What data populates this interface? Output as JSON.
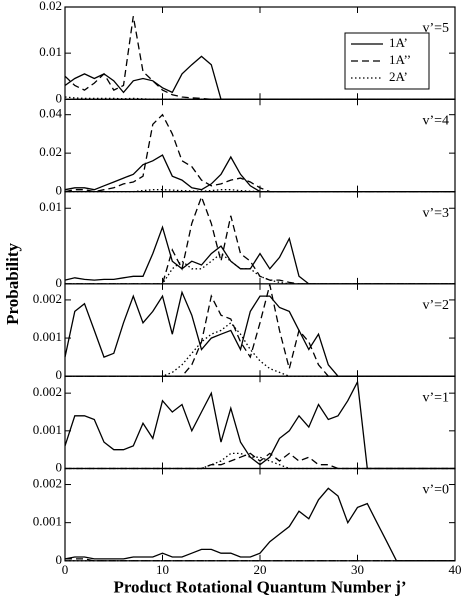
{
  "chart_data": [
    {
      "type": "line",
      "label": "v’=5",
      "ylim": [
        0,
        0.02
      ],
      "yticks": [
        0,
        0.01,
        0.02
      ],
      "ylabel": "Probability",
      "legend": "upper right",
      "x": [
        0,
        1,
        2,
        3,
        4,
        5,
        6,
        7,
        8,
        9,
        10,
        11,
        12,
        13,
        14,
        15,
        16,
        40
      ],
      "series": [
        {
          "name": "1A’",
          "color": "#000",
          "style": "solid",
          "values": [
            0.003,
            0.0045,
            0.0055,
            0.0045,
            0.0055,
            0.004,
            0.0015,
            0.004,
            0.0045,
            0.004,
            0.0025,
            0.0015,
            0.0055,
            0.0075,
            0.0093,
            0.0075,
            0,
            0
          ]
        },
        {
          "name": "1A’’",
          "color": "#000",
          "style": "dashed",
          "values": [
            0.005,
            0.003,
            0.002,
            0.0035,
            0.0055,
            0.002,
            0.003,
            0.018,
            0.006,
            0.004,
            0.002,
            0.001,
            0.0005,
            0.0003,
            0.0002,
            0,
            0,
            0
          ]
        },
        {
          "name": "2A’",
          "color": "#000",
          "style": "dotted",
          "values": [
            0.0005,
            0.0003,
            0.0002,
            0.0002,
            0.0002,
            0.0002,
            0.0001,
            0.0002,
            0.0001,
            0,
            0,
            0,
            0,
            0,
            0,
            0,
            0,
            0
          ]
        }
      ]
    },
    {
      "type": "line",
      "label": "v’=4",
      "ylim": [
        0,
        0.048
      ],
      "yticks": [
        0,
        0.02,
        0.04
      ],
      "x": [
        0,
        1,
        2,
        3,
        4,
        5,
        6,
        7,
        8,
        9,
        10,
        11,
        12,
        13,
        14,
        15,
        16,
        17,
        18,
        19,
        20,
        21,
        40
      ],
      "series": [
        {
          "name": "1A’",
          "color": "#000",
          "style": "solid",
          "values": [
            0.001,
            0.002,
            0.002,
            0.001,
            0.003,
            0.005,
            0.007,
            0.009,
            0.014,
            0.016,
            0.019,
            0.008,
            0.006,
            0.002,
            0.001,
            0.004,
            0.009,
            0.018,
            0.009,
            0.003,
            0,
            0,
            0
          ]
        },
        {
          "name": "1A’’",
          "color": "#000",
          "style": "dashed",
          "values": [
            0,
            0.001,
            0.001,
            0,
            0.001,
            0.002,
            0.004,
            0.005,
            0.008,
            0.035,
            0.04,
            0.03,
            0.016,
            0.013,
            0.006,
            0.003,
            0.004,
            0.006,
            0.007,
            0.005,
            0.002,
            0,
            0
          ]
        },
        {
          "name": "2A’",
          "color": "#000",
          "style": "dotted",
          "values": [
            0,
            0,
            0,
            0,
            0,
            0,
            0,
            0,
            0.0005,
            0.001,
            0.001,
            0.0008,
            0.0005,
            0.0003,
            0.0002,
            0.0005,
            0.001,
            0.001,
            0.0005,
            0.0002,
            0,
            0,
            0
          ]
        }
      ]
    },
    {
      "type": "line",
      "label": "v’=3",
      "ylim": [
        0,
        0.0122
      ],
      "yticks": [
        0,
        0.01
      ],
      "x": [
        0,
        1,
        2,
        3,
        4,
        5,
        6,
        7,
        8,
        9,
        10,
        11,
        12,
        13,
        14,
        15,
        16,
        17,
        18,
        19,
        20,
        21,
        22,
        23,
        24,
        25,
        40
      ],
      "series": [
        {
          "name": "1A’",
          "color": "#000",
          "style": "solid",
          "values": [
            0.0005,
            0.0008,
            0.0006,
            0.0005,
            0.0006,
            0.0006,
            0.0008,
            0.001,
            0.001,
            0.004,
            0.0075,
            0.003,
            0.002,
            0.003,
            0.0025,
            0.004,
            0.005,
            0.003,
            0.002,
            0.002,
            0.004,
            0.002,
            0.0035,
            0.006,
            0.001,
            0,
            0
          ]
        },
        {
          "name": "1A’’",
          "color": "#000",
          "style": "dashed",
          "values": [
            0,
            0,
            0,
            0,
            0,
            0,
            0,
            0,
            0,
            0,
            0,
            0.0045,
            0.002,
            0.008,
            0.0115,
            0.008,
            0.003,
            0.009,
            0.004,
            0.003,
            0.001,
            0.0005,
            0.0005,
            0.0002,
            0,
            0,
            0
          ]
        },
        {
          "name": "2A’",
          "color": "#000",
          "style": "dotted",
          "values": [
            0,
            0,
            0,
            0,
            0,
            0,
            0,
            0,
            0,
            0,
            0,
            0.002,
            0.003,
            0.002,
            0.002,
            0.003,
            0.004,
            0.003,
            0.002,
            0.002,
            0.001,
            0.0005,
            0.0002,
            0,
            0,
            0,
            0
          ]
        }
      ]
    },
    {
      "type": "line",
      "label": "v’=2",
      "ylim": [
        0,
        0.00242
      ],
      "yticks": [
        0,
        0.001,
        0.002
      ],
      "x": [
        0,
        1,
        2,
        3,
        4,
        5,
        6,
        7,
        8,
        9,
        10,
        11,
        12,
        13,
        14,
        15,
        16,
        17,
        18,
        19,
        20,
        21,
        22,
        23,
        24,
        25,
        26,
        27,
        28,
        40
      ],
      "series": [
        {
          "name": "1A’",
          "color": "#000",
          "style": "solid",
          "values": [
            0.0005,
            0.0017,
            0.0019,
            0.0012,
            0.0005,
            0.0006,
            0.0014,
            0.0021,
            0.0014,
            0.0017,
            0.0021,
            0.0011,
            0.0022,
            0.0016,
            0.0007,
            0.001,
            0.0011,
            0.0012,
            0.0007,
            0.0017,
            0.0021,
            0.0021,
            0.0018,
            0.0017,
            0.0012,
            0.0007,
            0.0011,
            0.0003,
            0,
            0
          ]
        },
        {
          "name": "1A’’",
          "color": "#000",
          "style": "dashed",
          "values": [
            0,
            0,
            0,
            0,
            0,
            0,
            0,
            0,
            0,
            0,
            0,
            0,
            0,
            0.0003,
            0.0009,
            0.0021,
            0.0016,
            0.0015,
            0.0009,
            0.0005,
            0.0014,
            0.0024,
            0.0012,
            0.0002,
            0.0012,
            0.0009,
            0.0003,
            0,
            0,
            0
          ]
        },
        {
          "name": "2A’",
          "color": "#000",
          "style": "dotted",
          "values": [
            0,
            0,
            0,
            0,
            0,
            0,
            0,
            0,
            0,
            0,
            0,
            0.0001,
            0.0003,
            0.0006,
            0.0009,
            0.0011,
            0.0012,
            0.0014,
            0.0011,
            0.0007,
            0.0004,
            0.0002,
            0.0001,
            0,
            0,
            0,
            0,
            0,
            0,
            0
          ]
        }
      ]
    },
    {
      "type": "line",
      "label": "v’=1",
      "ylim": [
        0,
        0.00245
      ],
      "yticks": [
        0,
        0.001,
        0.002
      ],
      "x": [
        0,
        1,
        2,
        3,
        4,
        5,
        6,
        7,
        8,
        9,
        10,
        11,
        12,
        13,
        14,
        15,
        16,
        17,
        18,
        19,
        20,
        21,
        22,
        23,
        24,
        25,
        26,
        27,
        28,
        29,
        30,
        31,
        40
      ],
      "series": [
        {
          "name": "1A’",
          "color": "#000",
          "style": "solid",
          "values": [
            0.0006,
            0.0014,
            0.0014,
            0.0013,
            0.0007,
            0.0005,
            0.0005,
            0.0006,
            0.0012,
            0.0008,
            0.0018,
            0.0015,
            0.0017,
            0.001,
            0.0015,
            0.002,
            0.0007,
            0.0016,
            0.0007,
            0.0003,
            0.0001,
            0.0003,
            0.0008,
            0.001,
            0.0014,
            0.0011,
            0.0017,
            0.0013,
            0.0014,
            0.0018,
            0.0023,
            0,
            0
          ]
        },
        {
          "name": "1A’’",
          "color": "#000",
          "style": "dashed",
          "values": [
            0,
            0,
            0,
            0,
            0,
            0,
            0,
            0,
            0,
            0,
            0,
            0,
            0,
            0,
            0,
            0.0001,
            0.0001,
            0.0002,
            0.0003,
            0.0004,
            0.0002,
            0.0004,
            0.0002,
            0.0004,
            0.0002,
            0.0003,
            0.0001,
            0.0001,
            0,
            0,
            0,
            0,
            0
          ]
        },
        {
          "name": "2A’",
          "color": "#000",
          "style": "dotted",
          "values": [
            0,
            0,
            0,
            0,
            0,
            0,
            0,
            0,
            0,
            0,
            0,
            0,
            0,
            0,
            0,
            0.0001,
            0.0002,
            0.0004,
            0.0004,
            0.0003,
            0.0003,
            0.0002,
            0.0001,
            0,
            0,
            0,
            0,
            0,
            0,
            0,
            0,
            0,
            0
          ]
        }
      ]
    },
    {
      "type": "line",
      "label": "v’=0",
      "ylim": [
        0,
        0.00242
      ],
      "yticks": [
        0,
        0.001,
        0.002
      ],
      "xlim": [
        0,
        40
      ],
      "xticks": [
        0,
        10,
        20,
        30,
        40
      ],
      "xlabel": "Product Rotational Quantum Number j’",
      "x": [
        0,
        1,
        2,
        3,
        4,
        5,
        6,
        7,
        8,
        9,
        10,
        11,
        12,
        13,
        14,
        15,
        16,
        17,
        18,
        19,
        20,
        21,
        22,
        23,
        24,
        25,
        26,
        27,
        28,
        29,
        30,
        31,
        32,
        33,
        34,
        40
      ],
      "series": [
        {
          "name": "1A’",
          "color": "#000",
          "style": "solid",
          "values": [
            5e-05,
            0.0001,
            0.0001,
            5e-05,
            5e-05,
            5e-05,
            5e-05,
            0.0001,
            0.0001,
            0.0001,
            0.0002,
            0.0001,
            0.0001,
            0.0002,
            0.0003,
            0.0003,
            0.0002,
            0.0002,
            0.0001,
            0.0001,
            0.0002,
            0.0005,
            0.0007,
            0.0009,
            0.0013,
            0.0011,
            0.0016,
            0.0019,
            0.0017,
            0.001,
            0.0014,
            0.0015,
            0.001,
            0.0005,
            0,
            0
          ]
        },
        {
          "name": "1A’’",
          "color": "#000",
          "style": "dashed",
          "values": [
            5e-05,
            5e-05,
            5e-05,
            0,
            0,
            0,
            0,
            0,
            0,
            0,
            0,
            0,
            0,
            0,
            0,
            0,
            0,
            0,
            0,
            0,
            0,
            0,
            0,
            0,
            0,
            0,
            0,
            0,
            0,
            0,
            0,
            0,
            0,
            0,
            0,
            0
          ]
        },
        {
          "name": "2A’",
          "color": "#000",
          "style": "dotted",
          "values": [
            0,
            0,
            0,
            0,
            0,
            0,
            0,
            0,
            0,
            0,
            0,
            0,
            0,
            0,
            0,
            0,
            0,
            0,
            0,
            0,
            0,
            0,
            0,
            0,
            0,
            0,
            0,
            0,
            0,
            0,
            0,
            0,
            0,
            0,
            0,
            0
          ]
        }
      ]
    }
  ]
}
